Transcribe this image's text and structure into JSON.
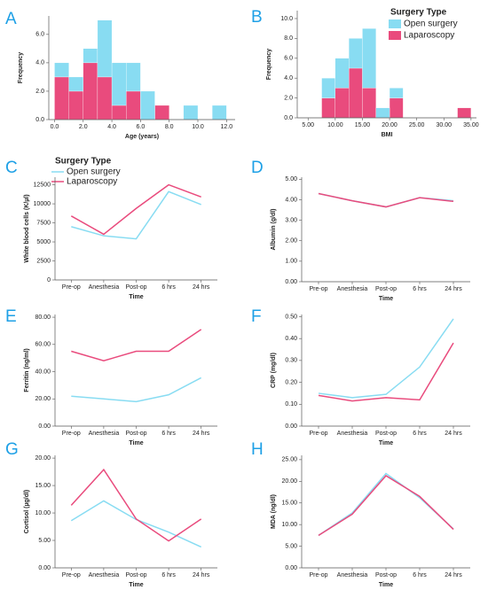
{
  "chart_data": [
    {
      "type": "histogram",
      "panel": "A",
      "x_label": "Age (years)",
      "y_label": "Frequency",
      "bins": [
        0,
        1,
        2,
        3,
        4,
        5,
        6,
        7,
        8,
        9,
        10,
        11,
        12
      ],
      "series": [
        {
          "name": "Open surgery",
          "color": "#88dcf2",
          "values": [
            1,
            1,
            1,
            4,
            3,
            2,
            2,
            0,
            0,
            1,
            0,
            1
          ]
        },
        {
          "name": "Laparoscopy",
          "color": "#e94b7d",
          "values": [
            3,
            2,
            4,
            3,
            1,
            2,
            0,
            1,
            0,
            0,
            0,
            0
          ]
        }
      ],
      "xlim": [
        -0.4,
        12.6
      ],
      "xticks": [
        {
          "value": 0,
          "label": "0.0"
        },
        {
          "value": 2,
          "label": "2.0"
        },
        {
          "value": 4,
          "label": "4.0"
        },
        {
          "value": 6,
          "label": "6.0"
        },
        {
          "value": 8,
          "label": "8.0"
        },
        {
          "value": 10,
          "label": "10.0"
        },
        {
          "value": 12,
          "label": "12.0"
        }
      ],
      "ylim": [
        0,
        7.3
      ],
      "yticks": [
        {
          "value": 0,
          "label": "0.0"
        },
        {
          "value": 2,
          "label": "2.0"
        },
        {
          "value": 4,
          "label": "4.0"
        },
        {
          "value": 6,
          "label": "6.0"
        }
      ]
    },
    {
      "type": "histogram",
      "panel": "B",
      "x_label": "BMI",
      "y_label": "Frequency",
      "legend_title": "Surgery Type",
      "bins": [
        7.5,
        10,
        12.5,
        15,
        17.5,
        20,
        22.5,
        25,
        27.5,
        30,
        32.5,
        35
      ],
      "series": [
        {
          "name": "Open surgery",
          "color": "#88dcf2",
          "values": [
            2,
            3,
            3,
            6,
            1,
            1,
            0,
            0,
            0,
            0,
            0
          ]
        },
        {
          "name": "Laparoscopy",
          "color": "#e94b7d",
          "values": [
            2,
            3,
            5,
            3,
            0,
            2,
            0,
            0,
            0,
            0,
            1
          ]
        }
      ],
      "xlim": [
        3,
        36
      ],
      "xticks": [
        {
          "value": 5,
          "label": "5.00"
        },
        {
          "value": 10,
          "label": "10.00"
        },
        {
          "value": 15,
          "label": "15.00"
        },
        {
          "value": 20,
          "label": "20.00"
        },
        {
          "value": 25,
          "label": "25.00"
        },
        {
          "value": 30,
          "label": "30.00"
        },
        {
          "value": 35,
          "label": "35.00"
        }
      ],
      "ylim": [
        0,
        10.8
      ],
      "yticks": [
        {
          "value": 0,
          "label": "0.0"
        },
        {
          "value": 2,
          "label": "2.0"
        },
        {
          "value": 4,
          "label": "4.0"
        },
        {
          "value": 6,
          "label": "6.0"
        },
        {
          "value": 8,
          "label": "8.0"
        },
        {
          "value": 10,
          "label": "10.0"
        }
      ]
    },
    {
      "type": "line",
      "panel": "C",
      "x_label": "Time",
      "y_label": "White blood cells (K/µl)",
      "legend_title": "Surgery Type",
      "categories": [
        "Pre-op",
        "Anesthesia",
        "Post-op",
        "6 hrs",
        "24 hrs"
      ],
      "series": [
        {
          "name": "Open surgery",
          "color": "#88dcf2",
          "values": [
            7000,
            5800,
            5400,
            11600,
            9900
          ]
        },
        {
          "name": "Laparoscopy",
          "color": "#e94b7d",
          "values": [
            8400,
            6000,
            9400,
            12500,
            10900
          ]
        }
      ],
      "ylim": [
        0,
        13500
      ],
      "yticks": [
        0,
        2500,
        5000,
        7500,
        10000,
        12500
      ]
    },
    {
      "type": "line",
      "panel": "D",
      "x_label": "Time",
      "y_label": "Albumin (g/dl)",
      "categories": [
        "Pre-op",
        "Anesthesia",
        "Post-op",
        "6 hrs",
        "24 hrs"
      ],
      "series": [
        {
          "name": "Open surgery",
          "color": "#88dcf2",
          "values": [
            4.3,
            3.95,
            3.65,
            4.1,
            3.95
          ]
        },
        {
          "name": "Laparoscopy",
          "color": "#e94b7d",
          "values": [
            4.3,
            3.95,
            3.65,
            4.1,
            3.92
          ]
        }
      ],
      "ylim": [
        0,
        5.1
      ],
      "yticks": [
        {
          "value": 0,
          "label": "0.00"
        },
        {
          "value": 1,
          "label": "1.00"
        },
        {
          "value": 2,
          "label": "2.00"
        },
        {
          "value": 3,
          "label": "3.00"
        },
        {
          "value": 4,
          "label": "4.00"
        },
        {
          "value": 5,
          "label": "5.00"
        }
      ]
    },
    {
      "type": "line",
      "panel": "E",
      "x_label": "Time",
      "y_label": "Ferritin (ng/ml)",
      "categories": [
        "Pre-op",
        "Anesthesia",
        "Post-op",
        "6 hrs",
        "24 hrs"
      ],
      "series": [
        {
          "name": "Open surgery",
          "color": "#88dcf2",
          "values": [
            22,
            20,
            18,
            23,
            35.5
          ]
        },
        {
          "name": "Laparoscopy",
          "color": "#e94b7d",
          "values": [
            55,
            48,
            55,
            55,
            71
          ]
        }
      ],
      "ylim": [
        0,
        82
      ],
      "yticks": [
        {
          "value": 0,
          "label": "0.00"
        },
        {
          "value": 20,
          "label": "20.00"
        },
        {
          "value": 40,
          "label": "40.00"
        },
        {
          "value": 60,
          "label": "60.00"
        },
        {
          "value": 80,
          "label": "80.00"
        }
      ]
    },
    {
      "type": "line",
      "panel": "F",
      "x_label": "Time",
      "y_label": "CRP (mg/dl)",
      "categories": [
        "Pre-op",
        "Anesthesia",
        "Post-op",
        "6 hrs",
        "24 hrs"
      ],
      "series": [
        {
          "name": "Open surgery",
          "color": "#88dcf2",
          "values": [
            0.15,
            0.13,
            0.145,
            0.27,
            0.49
          ]
        },
        {
          "name": "Laparoscopy",
          "color": "#e94b7d",
          "values": [
            0.14,
            0.115,
            0.13,
            0.12,
            0.38
          ]
        }
      ],
      "ylim": [
        0,
        0.51
      ],
      "yticks": [
        {
          "value": 0,
          "label": "0.00"
        },
        {
          "value": 0.1,
          "label": "0.10"
        },
        {
          "value": 0.2,
          "label": "0.20"
        },
        {
          "value": 0.3,
          "label": "0.30"
        },
        {
          "value": 0.4,
          "label": "0.40"
        },
        {
          "value": 0.5,
          "label": "0.50"
        }
      ]
    },
    {
      "type": "line",
      "panel": "G",
      "x_label": "Time",
      "y_label": "Cortisol (µg/dl)",
      "categories": [
        "Pre-op",
        "Anesthesia",
        "Post-op",
        "6 hrs",
        "24 hrs"
      ],
      "series": [
        {
          "name": "Open surgery",
          "color": "#88dcf2",
          "values": [
            8.6,
            12.2,
            8.8,
            6.5,
            3.8
          ]
        },
        {
          "name": "Laparoscopy",
          "color": "#e94b7d",
          "values": [
            11.4,
            17.9,
            8.9,
            4.9,
            8.9
          ]
        }
      ],
      "ylim": [
        0,
        20.5
      ],
      "yticks": [
        {
          "value": 0,
          "label": "0.00"
        },
        {
          "value": 5,
          "label": "5.00"
        },
        {
          "value": 10,
          "label": "10.00"
        },
        {
          "value": 15,
          "label": "15.00"
        },
        {
          "value": 20,
          "label": "20.00"
        }
      ]
    },
    {
      "type": "line",
      "panel": "H",
      "x_label": "Time",
      "y_label": "MDA (ng/dl)",
      "categories": [
        "Pre-op",
        "Anesthesia",
        "Post-op",
        "6 hrs",
        "24 hrs"
      ],
      "series": [
        {
          "name": "Open surgery",
          "color": "#88dcf2",
          "values": [
            7.5,
            12.7,
            21.8,
            16.2,
            9
          ]
        },
        {
          "name": "Laparoscopy",
          "color": "#e94b7d",
          "values": [
            7.5,
            12.4,
            21.3,
            16.5,
            8.9
          ]
        }
      ],
      "ylim": [
        0,
        26
      ],
      "yticks": [
        {
          "value": 0,
          "label": "0.00"
        },
        {
          "value": 5,
          "label": "5.00"
        },
        {
          "value": 10,
          "label": "10.00"
        },
        {
          "value": 15,
          "label": "15.00"
        },
        {
          "value": 20,
          "label": "20.00"
        },
        {
          "value": 25,
          "label": "25.00"
        }
      ]
    }
  ]
}
